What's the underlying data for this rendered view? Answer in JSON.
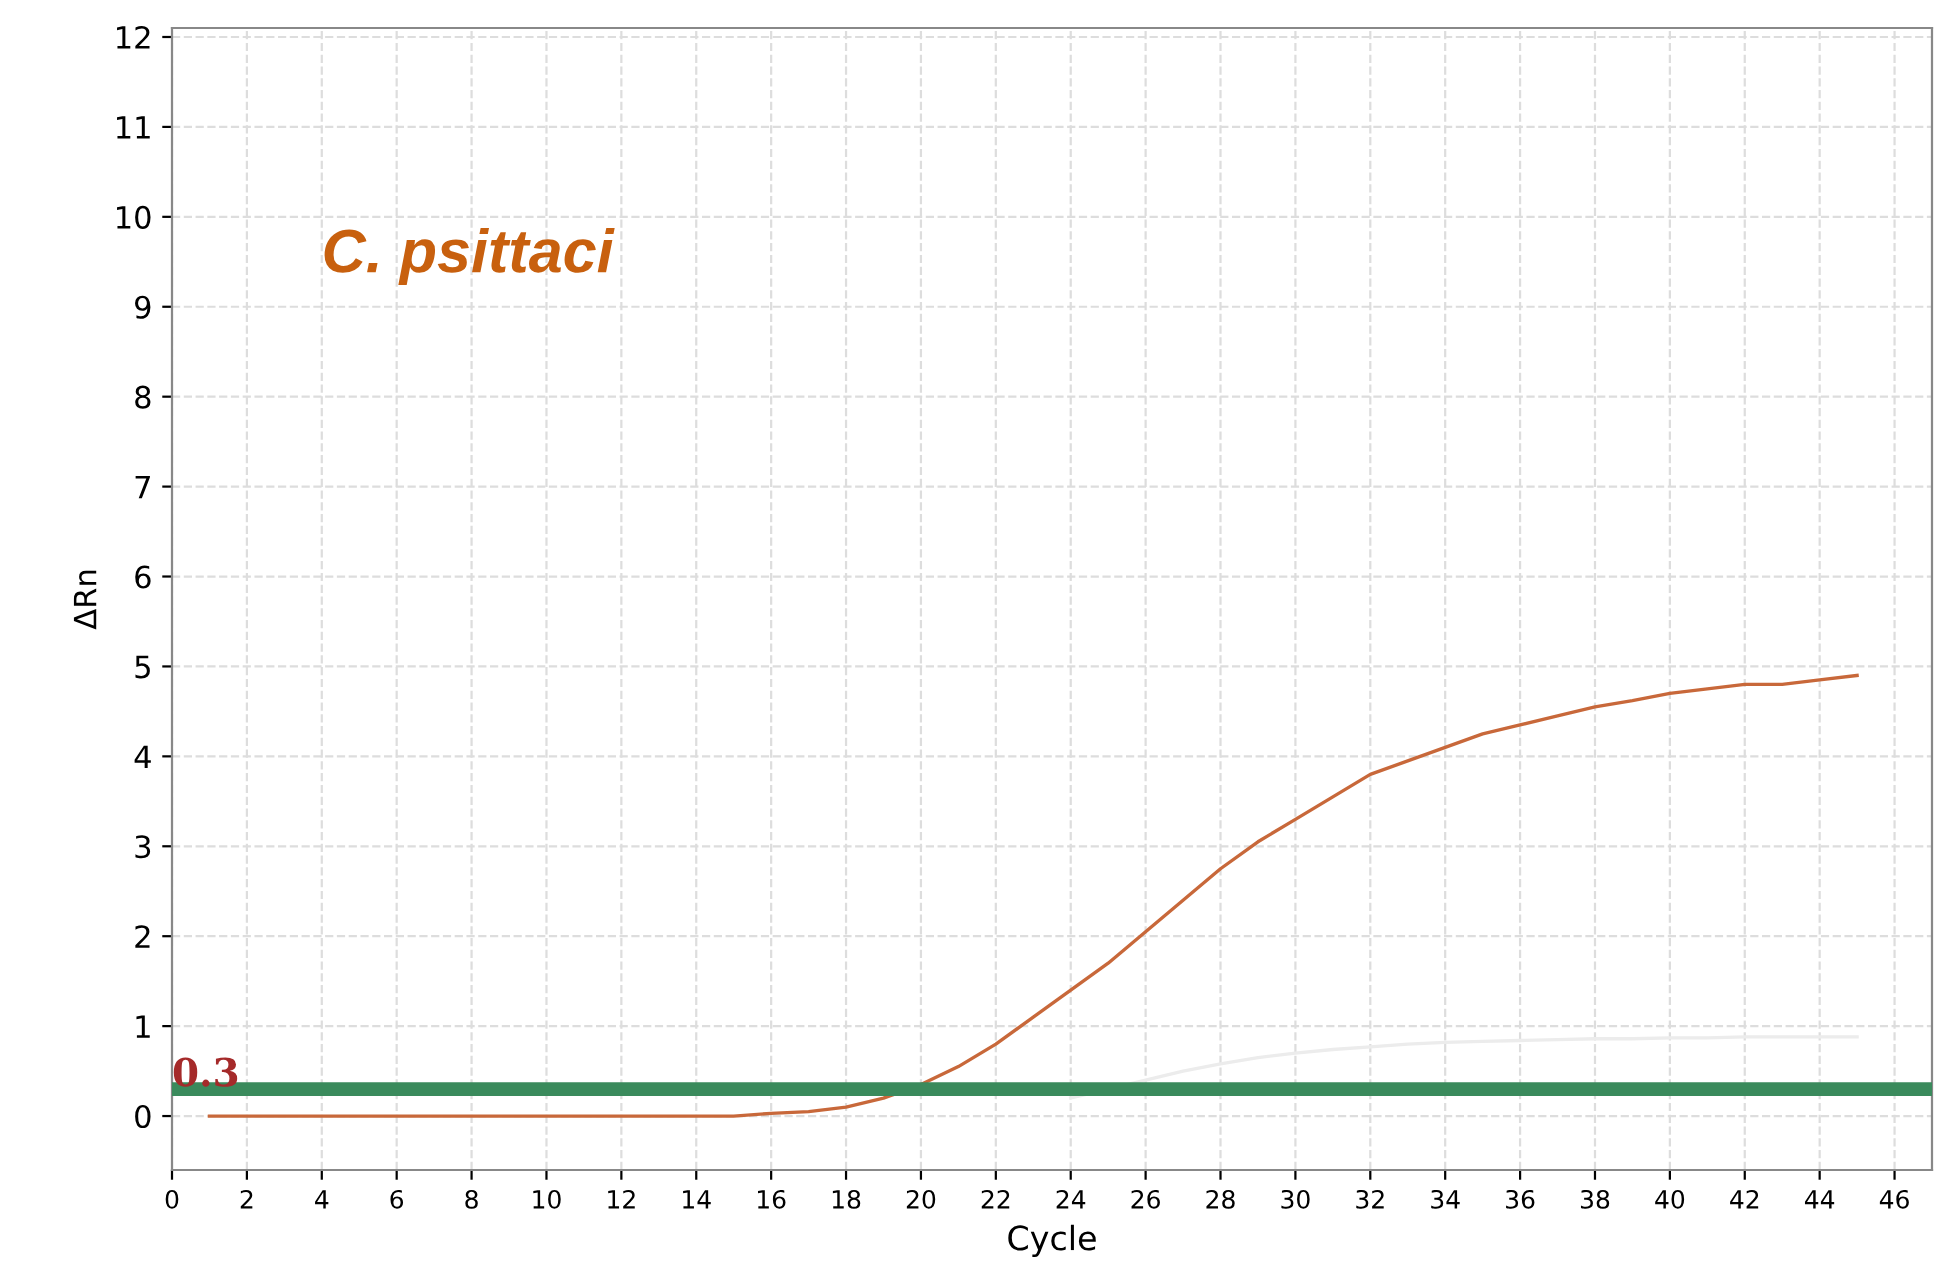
{
  "chart_data": {
    "type": "line",
    "xlabel": "Cycle",
    "ylabel": "ΔRn",
    "x": [
      1,
      2,
      3,
      4,
      5,
      6,
      7,
      8,
      9,
      10,
      11,
      12,
      13,
      14,
      15,
      16,
      17,
      18,
      19,
      20,
      21,
      22,
      23,
      24,
      25,
      26,
      27,
      28,
      29,
      30,
      31,
      32,
      33,
      34,
      35,
      36,
      37,
      38,
      39,
      40,
      41,
      42,
      43,
      44,
      45
    ],
    "series": [
      {
        "color": "#c8683a",
        "values": [
          0,
          0,
          0,
          0,
          0,
          0,
          0,
          0,
          0,
          0,
          0,
          0,
          0,
          0,
          0,
          0.03,
          0.05,
          0.1,
          0.2,
          0.35,
          0.55,
          0.8,
          1.1,
          1.4,
          1.7,
          2.05,
          2.4,
          2.75,
          3.05,
          3.3,
          3.55,
          3.8,
          3.95,
          4.1,
          4.25,
          4.35,
          4.45,
          4.55,
          4.62,
          4.7,
          4.75,
          4.8,
          4.8,
          4.85,
          4.9
        ]
      },
      {
        "color": "#ececec",
        "values": [
          null,
          null,
          null,
          null,
          null,
          null,
          null,
          null,
          null,
          null,
          null,
          null,
          null,
          null,
          null,
          null,
          null,
          null,
          null,
          null,
          null,
          null,
          null,
          0.2,
          0.3,
          0.4,
          0.5,
          0.58,
          0.65,
          0.7,
          0.74,
          0.77,
          0.8,
          0.82,
          0.83,
          0.84,
          0.85,
          0.86,
          0.86,
          0.87,
          0.87,
          0.88,
          0.88,
          0.88,
          0.88
        ]
      }
    ],
    "xlim": [
      0,
      47
    ],
    "ylim": [
      -0.6,
      12.1
    ],
    "xticks": [
      0,
      2,
      4,
      6,
      8,
      10,
      12,
      14,
      16,
      18,
      20,
      22,
      24,
      26,
      28,
      30,
      32,
      34,
      36,
      38,
      40,
      42,
      44,
      46
    ],
    "yticks": [
      0,
      1,
      2,
      3,
      4,
      5,
      6,
      7,
      8,
      9,
      10,
      11,
      12
    ],
    "grid": true,
    "marker": "none",
    "line_style": "solid",
    "legend": false,
    "ref_lines": [
      {
        "axis": "y",
        "value": 0.3,
        "label": "0.3",
        "color": "#3a8a5c"
      }
    ],
    "annotations": [
      "C. psittaci"
    ]
  }
}
